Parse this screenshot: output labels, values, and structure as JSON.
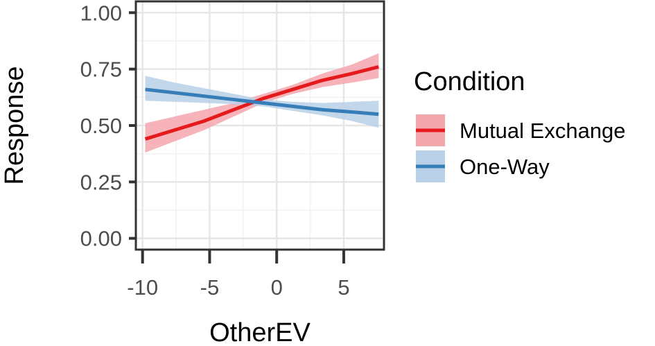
{
  "chart_data": {
    "type": "line",
    "title": "",
    "xlabel": "OtherEV",
    "ylabel": "Response",
    "xlim": [
      -10.5,
      8.0
    ],
    "ylim": [
      -0.05,
      1.05
    ],
    "xticks": [
      -10,
      -5,
      0,
      5
    ],
    "xtick_labels": [
      "-10",
      "-5",
      "0",
      "5"
    ],
    "yticks": [
      0.0,
      0.25,
      0.5,
      0.75,
      1.0
    ],
    "ytick_labels": [
      "0.00",
      "0.25",
      "0.50",
      "0.75",
      "1.00"
    ],
    "grid": true,
    "legend": {
      "title": "Condition",
      "position": "right"
    },
    "series": [
      {
        "name": "Mutual Exchange",
        "color": "#e41a1c",
        "fill_color": "#f4a6ad",
        "x": [
          -9.8,
          -7.6,
          -5.4,
          -3.2,
          -1.0,
          1.2,
          3.4,
          5.6,
          7.6
        ],
        "y": [
          0.44,
          0.48,
          0.52,
          0.57,
          0.62,
          0.66,
          0.7,
          0.73,
          0.76
        ],
        "lower": [
          0.38,
          0.43,
          0.48,
          0.54,
          0.6,
          0.64,
          0.67,
          0.69,
          0.71
        ],
        "upper": [
          0.51,
          0.54,
          0.57,
          0.6,
          0.64,
          0.68,
          0.73,
          0.77,
          0.82
        ]
      },
      {
        "name": "One-Way",
        "color": "#377eb8",
        "fill_color": "#b8d0e8",
        "x": [
          -9.8,
          -7.6,
          -5.4,
          -3.2,
          -1.0,
          1.2,
          3.4,
          5.6,
          7.6
        ],
        "y": [
          0.66,
          0.645,
          0.63,
          0.615,
          0.6,
          0.585,
          0.57,
          0.56,
          0.55
        ],
        "lower": [
          0.61,
          0.605,
          0.6,
          0.595,
          0.585,
          0.565,
          0.545,
          0.52,
          0.49
        ],
        "upper": [
          0.72,
          0.69,
          0.665,
          0.64,
          0.615,
          0.605,
          0.6,
          0.605,
          0.61
        ]
      }
    ]
  }
}
